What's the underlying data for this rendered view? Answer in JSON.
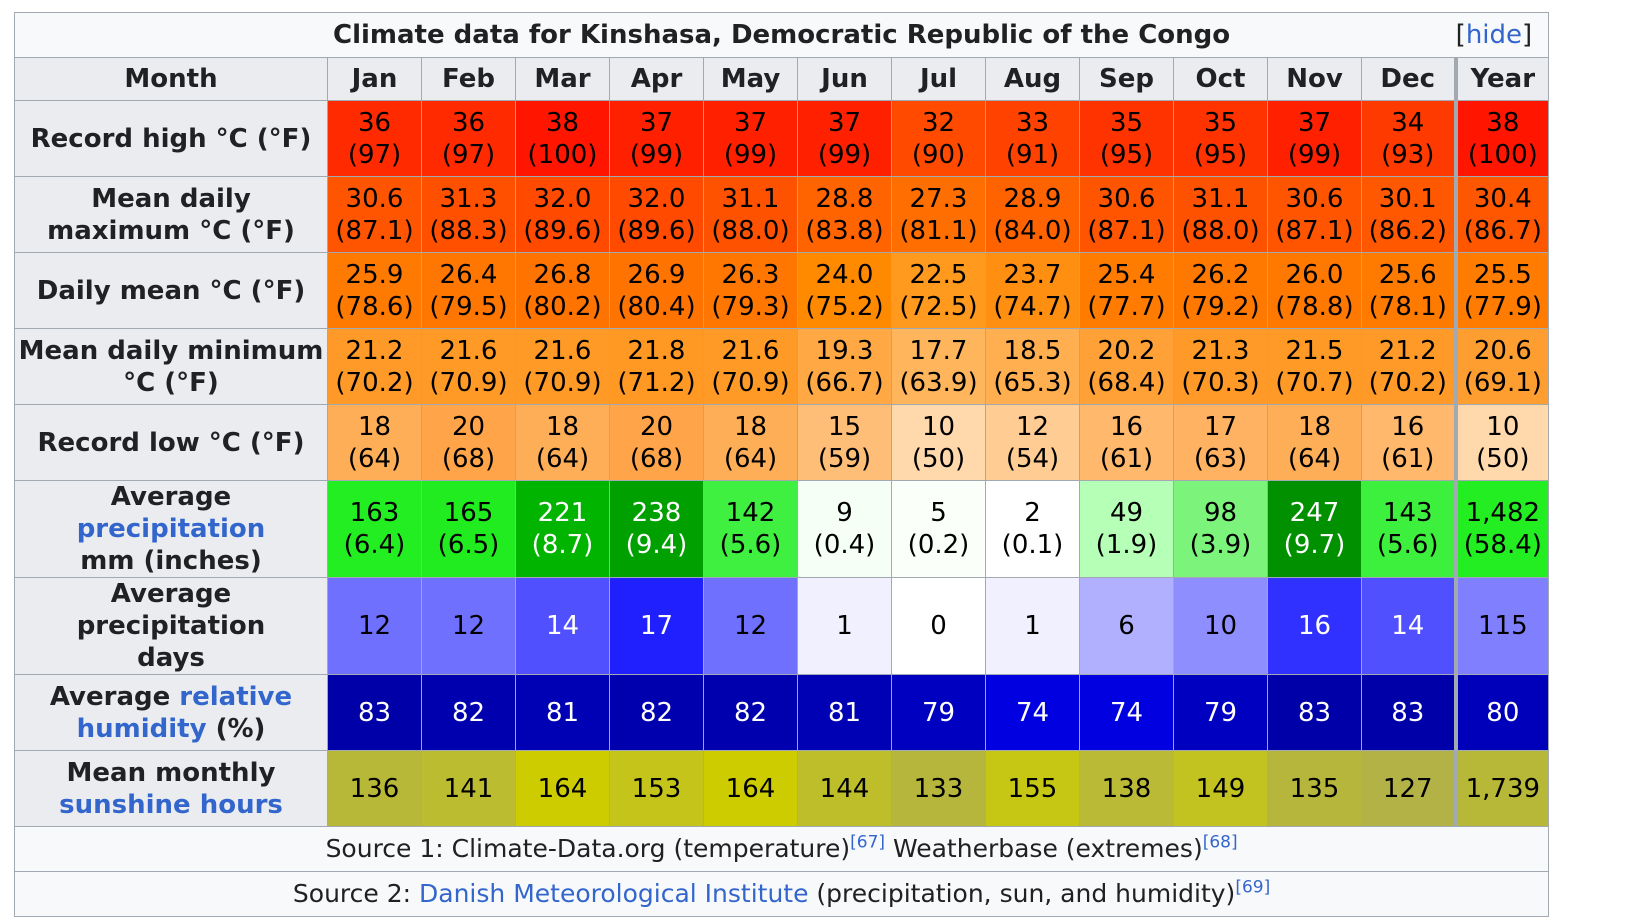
{
  "title": "Climate data for Kinshasa, Democratic Republic of the Congo",
  "hide_label": "hide",
  "month_header": "Month",
  "months": [
    "Jan",
    "Feb",
    "Mar",
    "Apr",
    "May",
    "Jun",
    "Jul",
    "Aug",
    "Sep",
    "Oct",
    "Nov",
    "Dec",
    "Year"
  ],
  "rows": [
    {
      "label": [
        "Record high °C (°F)"
      ],
      "label_links": [],
      "values": [
        [
          "36",
          "(97)"
        ],
        [
          "36",
          "(97)"
        ],
        [
          "38",
          "(100)"
        ],
        [
          "37",
          "(99)"
        ],
        [
          "37",
          "(99)"
        ],
        [
          "37",
          "(99)"
        ],
        [
          "32",
          "(90)"
        ],
        [
          "33",
          "(91)"
        ],
        [
          "35",
          "(95)"
        ],
        [
          "35",
          "(95)"
        ],
        [
          "37",
          "(99)"
        ],
        [
          "34",
          "(93)"
        ],
        [
          "38",
          "(100)"
        ]
      ],
      "colors": [
        "#ff2a00",
        "#ff2a00",
        "#ff1500",
        "#ff2000",
        "#ff2000",
        "#ff2000",
        "#ff4a00",
        "#ff4200",
        "#ff3300",
        "#ff3300",
        "#ff2000",
        "#ff3a00",
        "#ff1500"
      ],
      "text_color": "#000000"
    },
    {
      "label": [
        "Mean daily",
        "maximum °C (°F)"
      ],
      "label_links": [],
      "values": [
        [
          "30.6",
          "(87.1)"
        ],
        [
          "31.3",
          "(88.3)"
        ],
        [
          "32.0",
          "(89.6)"
        ],
        [
          "32.0",
          "(89.6)"
        ],
        [
          "31.1",
          "(88.0)"
        ],
        [
          "28.8",
          "(83.8)"
        ],
        [
          "27.3",
          "(81.1)"
        ],
        [
          "28.9",
          "(84.0)"
        ],
        [
          "30.6",
          "(87.1)"
        ],
        [
          "31.1",
          "(88.0)"
        ],
        [
          "30.6",
          "(87.1)"
        ],
        [
          "30.1",
          "(86.2)"
        ],
        [
          "30.4",
          "(86.7)"
        ]
      ],
      "colors": [
        "#ff5500",
        "#ff5000",
        "#ff4a00",
        "#ff4a00",
        "#ff5200",
        "#ff6400",
        "#ff6e00",
        "#ff6300",
        "#ff5500",
        "#ff5200",
        "#ff5500",
        "#ff5800",
        "#ff5600"
      ],
      "text_color": "#000000"
    },
    {
      "label": [
        "Daily mean °C (°F)"
      ],
      "label_links": [],
      "values": [
        [
          "25.9",
          "(78.6)"
        ],
        [
          "26.4",
          "(79.5)"
        ],
        [
          "26.8",
          "(80.2)"
        ],
        [
          "26.9",
          "(80.4)"
        ],
        [
          "26.3",
          "(79.3)"
        ],
        [
          "24.0",
          "(75.2)"
        ],
        [
          "22.5",
          "(72.5)"
        ],
        [
          "23.7",
          "(74.7)"
        ],
        [
          "25.4",
          "(77.7)"
        ],
        [
          "26.2",
          "(79.2)"
        ],
        [
          "26.0",
          "(78.8)"
        ],
        [
          "25.6",
          "(78.1)"
        ],
        [
          "25.5",
          "(77.9)"
        ]
      ],
      "colors": [
        "#ff7a00",
        "#ff7700",
        "#ff7300",
        "#ff7300",
        "#ff7700",
        "#ff8a00",
        "#ff9a1e",
        "#ff8f10",
        "#ff7c00",
        "#ff7800",
        "#ff7900",
        "#ff7b00",
        "#ff7c00"
      ],
      "text_color": "#000000"
    },
    {
      "label": [
        "Mean daily minimum",
        "°C (°F)"
      ],
      "label_links": [],
      "values": [
        [
          "21.2",
          "(70.2)"
        ],
        [
          "21.6",
          "(70.9)"
        ],
        [
          "21.6",
          "(70.9)"
        ],
        [
          "21.8",
          "(71.2)"
        ],
        [
          "21.6",
          "(70.9)"
        ],
        [
          "19.3",
          "(66.7)"
        ],
        [
          "17.7",
          "(63.9)"
        ],
        [
          "18.5",
          "(65.3)"
        ],
        [
          "20.2",
          "(68.4)"
        ],
        [
          "21.3",
          "(70.3)"
        ],
        [
          "21.5",
          "(70.7)"
        ],
        [
          "21.2",
          "(70.2)"
        ],
        [
          "20.6",
          "(69.1)"
        ]
      ],
      "colors": [
        "#ff9a28",
        "#ff9a26",
        "#ff9a26",
        "#ff9924",
        "#ff9a26",
        "#ffa844",
        "#ffb55c",
        "#ffae50",
        "#ffa136",
        "#ff9a28",
        "#ff9a27",
        "#ff9a28",
        "#ff9e30"
      ],
      "text_color": "#000000"
    },
    {
      "label": [
        "Record low °C (°F)"
      ],
      "label_links": [],
      "values": [
        [
          "18",
          "(64)"
        ],
        [
          "20",
          "(68)"
        ],
        [
          "18",
          "(64)"
        ],
        [
          "20",
          "(68)"
        ],
        [
          "18",
          "(64)"
        ],
        [
          "15",
          "(59)"
        ],
        [
          "10",
          "(50)"
        ],
        [
          "12",
          "(54)"
        ],
        [
          "16",
          "(61)"
        ],
        [
          "17",
          "(63)"
        ],
        [
          "18",
          "(64)"
        ],
        [
          "16",
          "(61)"
        ],
        [
          "10",
          "(50)"
        ]
      ],
      "colors": [
        "#ffae58",
        "#ffa448",
        "#ffae58",
        "#ffa448",
        "#ffae58",
        "#ffbe78",
        "#ffd8ac",
        "#ffcc94",
        "#ffb86c",
        "#ffb362",
        "#ffae58",
        "#ffb86c",
        "#ffd8ac"
      ],
      "text_color": "#000000"
    },
    {
      "label": [
        "Average precipitation",
        "mm (inches)"
      ],
      "label_links": [
        "precipitation"
      ],
      "values": [
        [
          "163",
          "(6.4)"
        ],
        [
          "165",
          "(6.5)"
        ],
        [
          "221",
          "(8.7)"
        ],
        [
          "238",
          "(9.4)"
        ],
        [
          "142",
          "(5.6)"
        ],
        [
          "9",
          "(0.4)"
        ],
        [
          "5",
          "(0.2)"
        ],
        [
          "2",
          "(0.1)"
        ],
        [
          "49",
          "(1.9)"
        ],
        [
          "98",
          "(3.9)"
        ],
        [
          "247",
          "(9.7)"
        ],
        [
          "143",
          "(5.6)"
        ],
        [
          "1,482",
          "(58.4)"
        ]
      ],
      "colors": [
        "#22ee22",
        "#20ec20",
        "#00b400",
        "#00a000",
        "#40f040",
        "#f5fff5",
        "#fafffa",
        "#ffffff",
        "#b6ffb6",
        "#7cf47c",
        "#009000",
        "#3ef03e",
        "#22ee22"
      ],
      "text_colors": [
        "#000000",
        "#000000",
        "#ffffff",
        "#ffffff",
        "#000000",
        "#000000",
        "#000000",
        "#000000",
        "#000000",
        "#000000",
        "#ffffff",
        "#000000",
        "#000000"
      ]
    },
    {
      "label": [
        "Average precipitation",
        "days"
      ],
      "label_links": [],
      "values": [
        [
          "12"
        ],
        [
          "12"
        ],
        [
          "14"
        ],
        [
          "17"
        ],
        [
          "12"
        ],
        [
          "1"
        ],
        [
          "0"
        ],
        [
          "1"
        ],
        [
          "6"
        ],
        [
          "10"
        ],
        [
          "16"
        ],
        [
          "14"
        ],
        [
          "115"
        ]
      ],
      "colors": [
        "#7070ff",
        "#7070ff",
        "#5050ff",
        "#2020ff",
        "#7070ff",
        "#f0f0ff",
        "#ffffff",
        "#f0f0ff",
        "#b0b0ff",
        "#8e8eff",
        "#3030ff",
        "#5050ff",
        "#8080ff"
      ],
      "text_colors": [
        "#000000",
        "#000000",
        "#ffffff",
        "#ffffff",
        "#000000",
        "#000000",
        "#000000",
        "#000000",
        "#000000",
        "#000000",
        "#ffffff",
        "#ffffff",
        "#000000"
      ]
    },
    {
      "label": [
        "Average relative",
        "humidity (%)"
      ],
      "label_links": [
        "relative",
        "humidity"
      ],
      "values": [
        [
          "83"
        ],
        [
          "82"
        ],
        [
          "81"
        ],
        [
          "82"
        ],
        [
          "82"
        ],
        [
          "81"
        ],
        [
          "79"
        ],
        [
          "74"
        ],
        [
          "74"
        ],
        [
          "79"
        ],
        [
          "83"
        ],
        [
          "83"
        ],
        [
          "80"
        ]
      ],
      "colors": [
        "#0000a8",
        "#0000ae",
        "#0000b4",
        "#0000ae",
        "#0000ae",
        "#0000b4",
        "#0000c0",
        "#0000e0",
        "#0000e0",
        "#0000c0",
        "#0000a8",
        "#0000a8",
        "#0000ba"
      ],
      "text_color": "#ffffff"
    },
    {
      "label": [
        "Mean monthly",
        "sunshine hours"
      ],
      "label_links": [
        "sunshine hours"
      ],
      "values": [
        [
          "136"
        ],
        [
          "141"
        ],
        [
          "164"
        ],
        [
          "153"
        ],
        [
          "164"
        ],
        [
          "144"
        ],
        [
          "133"
        ],
        [
          "155"
        ],
        [
          "138"
        ],
        [
          "149"
        ],
        [
          "135"
        ],
        [
          "127"
        ],
        [
          "1,739"
        ]
      ],
      "colors": [
        "#b8b838",
        "#bcbc30",
        "#cccc00",
        "#c4c41a",
        "#cccc00",
        "#bebe2a",
        "#b6b63c",
        "#c6c614",
        "#baba36",
        "#c2c220",
        "#b6b63c",
        "#b2b246",
        "#b8b838"
      ],
      "text_color": "#000000"
    }
  ],
  "source1": {
    "prefix": "Source 1: Climate-Data.org (temperature)",
    "ref1": "[67]",
    "middle": " Weatherbase (extremes)",
    "ref2": "[68]"
  },
  "source2": {
    "prefix": "Source 2: ",
    "link": "Danish Meteorological Institute",
    "suffix": " (precipitation, sun, and humidity)",
    "ref": "[69]"
  }
}
